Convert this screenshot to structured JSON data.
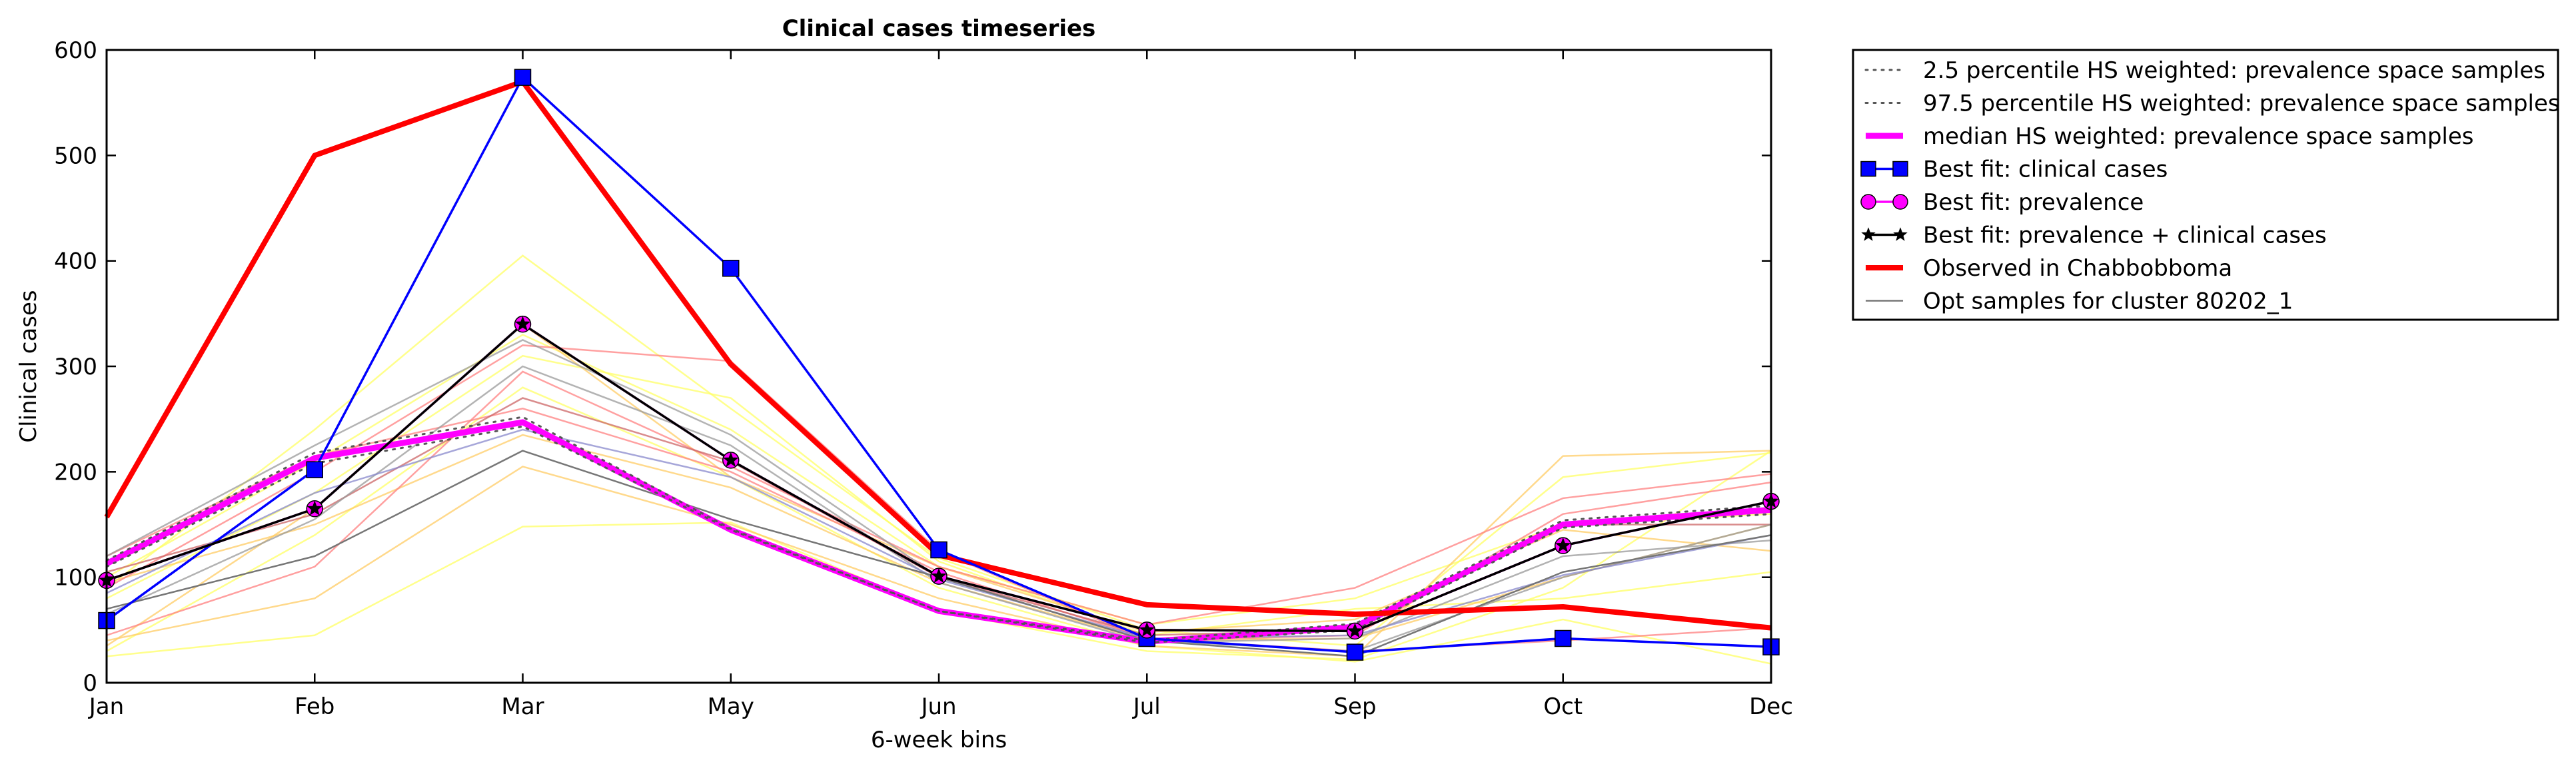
{
  "chart_data": {
    "type": "line",
    "title": "Clinical cases timeseries",
    "xlabel": "6-week bins",
    "ylabel": "Clinical cases",
    "categories": [
      "Jan",
      "Feb",
      "Mar",
      "May",
      "Jun",
      "Jul",
      "Sep",
      "Oct",
      "Dec"
    ],
    "ylim": [
      0,
      600
    ],
    "yticks": [
      "0",
      "100",
      "200",
      "300",
      "400",
      "500",
      "600"
    ],
    "grid": false,
    "legend_position": "outside-right",
    "series": [
      {
        "name": "2.5 percentile HS weighted: prevalence space samples",
        "values": [
          110,
          208,
          243,
          145,
          68,
          38,
          50,
          147,
          160
        ],
        "color": "#555555",
        "style": "dotted"
      },
      {
        "name": "97.5 percentile HS weighted: prevalence space samples",
        "values": [
          116,
          218,
          252,
          146,
          68,
          40,
          56,
          154,
          168
        ],
        "color": "#555555",
        "style": "dotted"
      },
      {
        "name": "median HS weighted: prevalence space samples",
        "values": [
          113,
          213,
          247,
          145,
          68,
          39,
          53,
          150,
          164
        ],
        "color": "#ff00ff",
        "style": "solid"
      },
      {
        "name": "Best fit: clinical cases",
        "values": [
          59,
          202,
          574,
          393,
          126,
          42,
          29,
          42,
          34
        ],
        "color": "#0000ff",
        "style": "square"
      },
      {
        "name": "Best fit: prevalence",
        "values": [
          97,
          165,
          340,
          211,
          101,
          50,
          49,
          130,
          172
        ],
        "color": "#ff00ff",
        "style": "circle"
      },
      {
        "name": "Best fit: prevalence + clinical cases",
        "values": [
          97,
          165,
          340,
          211,
          101,
          50,
          49,
          130,
          172
        ],
        "color": "#000000",
        "style": "star"
      },
      {
        "name": "Observed in Chabbobboma",
        "values": [
          157,
          500,
          570,
          302,
          121,
          74,
          65,
          72,
          52
        ],
        "color": "#ff0000",
        "style": "thick"
      },
      {
        "name": "Opt samples for cluster 80202_1",
        "values": [
          70,
          120,
          220,
          155,
          100,
          40,
          25,
          105,
          140
        ],
        "color": "#777777",
        "style": "thin"
      }
    ],
    "background_samples": [
      {
        "color": "#ffff66",
        "values": [
          25,
          45,
          148,
          152,
          68,
          30,
          22,
          90,
          220
        ]
      },
      {
        "color": "#ffff66",
        "values": [
          90,
          240,
          405,
          260,
          118,
          50,
          35,
          195,
          218
        ]
      },
      {
        "color": "#ffff66",
        "values": [
          80,
          180,
          310,
          270,
          115,
          45,
          70,
          80,
          105
        ]
      },
      {
        "color": "#ffff66",
        "values": [
          100,
          210,
          330,
          240,
          110,
          55,
          80,
          150,
          160
        ]
      },
      {
        "color": "#ffff66",
        "values": [
          30,
          140,
          280,
          195,
          90,
          35,
          20,
          60,
          18
        ]
      },
      {
        "color": "#ffcc66",
        "values": [
          40,
          80,
          205,
          150,
          80,
          35,
          25,
          215,
          220
        ]
      },
      {
        "color": "#ffcc66",
        "values": [
          95,
          150,
          235,
          185,
          95,
          40,
          42,
          100,
          150
        ]
      },
      {
        "color": "#ffcc66",
        "values": [
          35,
          165,
          340,
          195,
          110,
          48,
          60,
          145,
          125
        ]
      },
      {
        "color": "#ff8080",
        "values": [
          45,
          110,
          295,
          205,
          110,
          55,
          90,
          175,
          198
        ]
      },
      {
        "color": "#ff8080",
        "values": [
          90,
          200,
          320,
          305,
          125,
          40,
          45,
          160,
          190
        ]
      },
      {
        "color": "#ff8080",
        "values": [
          120,
          215,
          260,
          200,
          105,
          42,
          30,
          40,
          52
        ]
      },
      {
        "color": "#cc6666",
        "values": [
          105,
          160,
          270,
          210,
          100,
          45,
          50,
          150,
          150
        ]
      },
      {
        "color": "#999999",
        "values": [
          120,
          225,
          325,
          235,
          100,
          40,
          30,
          100,
          150
        ]
      },
      {
        "color": "#999999",
        "values": [
          65,
          155,
          300,
          225,
          95,
          38,
          42,
          120,
          135
        ]
      },
      {
        "color": "#8888cc",
        "values": [
          85,
          180,
          240,
          195,
          98,
          42,
          45,
          102,
          140
        ]
      }
    ]
  }
}
